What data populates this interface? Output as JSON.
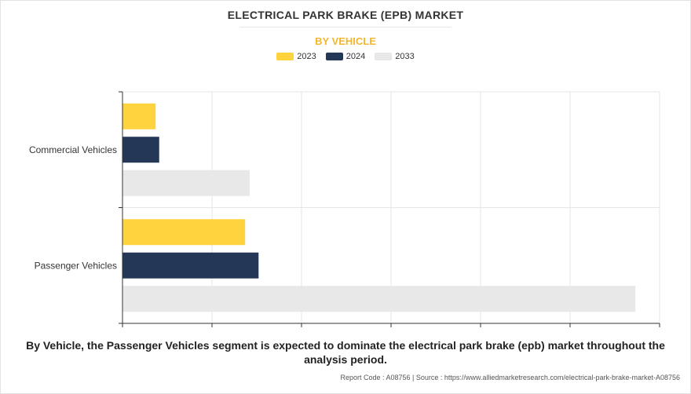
{
  "title": "ELECTRICAL PARK BRAKE (EPB) MARKET",
  "subtitle": "BY VEHICLE",
  "legend": [
    {
      "label": "2023",
      "color": "#fed33e"
    },
    {
      "label": "2024",
      "color": "#253757"
    },
    {
      "label": "2033",
      "color": "#e8e8e8"
    }
  ],
  "chart_data": {
    "type": "bar",
    "orientation": "horizontal",
    "categories": [
      "Commercial Vehicles",
      "Passenger Vehicles"
    ],
    "series": [
      {
        "name": "2023",
        "color": "#fed33e",
        "values": [
          0.37,
          1.37
        ]
      },
      {
        "name": "2024",
        "color": "#253757",
        "values": [
          0.41,
          1.52
        ]
      },
      {
        "name": "2033",
        "color": "#e8e8e8",
        "values": [
          1.42,
          5.73
        ]
      }
    ],
    "xlim": [
      0,
      6
    ],
    "grid": true,
    "legend_position": "top-center",
    "xlabel": "",
    "ylabel": ""
  },
  "caption": "By Vehicle, the Passenger Vehicles segment is expected to dominate the electrical park brake (epb) market throughout the analysis period.",
  "footer": "Report Code : A08756  |  Source : https://www.alliedmarketresearch.com/electrical-park-brake-market-A08756"
}
